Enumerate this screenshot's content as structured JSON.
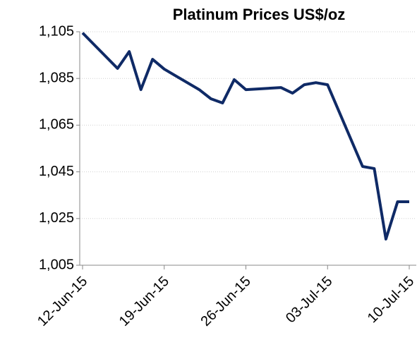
{
  "chart_data": {
    "type": "line",
    "title": "Platinum Prices US$/oz",
    "x": [
      "2015-06-12",
      "2015-06-15",
      "2015-06-16",
      "2015-06-17",
      "2015-06-18",
      "2015-06-19",
      "2015-06-22",
      "2015-06-23",
      "2015-06-24",
      "2015-06-25",
      "2015-06-26",
      "2015-06-29",
      "2015-06-30",
      "2015-07-01",
      "2015-07-02",
      "2015-07-03",
      "2015-07-06",
      "2015-07-07",
      "2015-07-08",
      "2015-07-09",
      "2015-07-10"
    ],
    "series": [
      {
        "name": "Platinum",
        "color": "#0f2a66",
        "values": [
          1104.5,
          1089.3,
          1096.5,
          1080.2,
          1093.2,
          1089,
          1080.2,
          1076.3,
          1074.5,
          1084.5,
          1080.2,
          1081.1,
          1078.7,
          1082.3,
          1083.2,
          1082.3,
          1047.3,
          1046.4,
          1016.2,
          1032.2,
          1032.2
        ]
      }
    ],
    "xlim": [
      "2015-06-12",
      "2015-07-10"
    ],
    "xticks": [
      {
        "value": "2015-06-12",
        "label": "12-Jun-15"
      },
      {
        "value": "2015-06-19",
        "label": "19-Jun-15"
      },
      {
        "value": "2015-06-26",
        "label": "26-Jun-15"
      },
      {
        "value": "2015-07-03",
        "label": "03-Jul-15"
      },
      {
        "value": "2015-07-10",
        "label": "10-Jul-15"
      }
    ],
    "ylim": [
      1005,
      1105
    ],
    "yticks": [
      {
        "value": 1005,
        "label": "1,005"
      },
      {
        "value": 1025,
        "label": "1,025"
      },
      {
        "value": 1045,
        "label": "1,045"
      },
      {
        "value": 1065,
        "label": "1,065"
      },
      {
        "value": 1085,
        "label": "1,085"
      },
      {
        "value": 1105,
        "label": "1,105"
      }
    ],
    "grid": true
  }
}
